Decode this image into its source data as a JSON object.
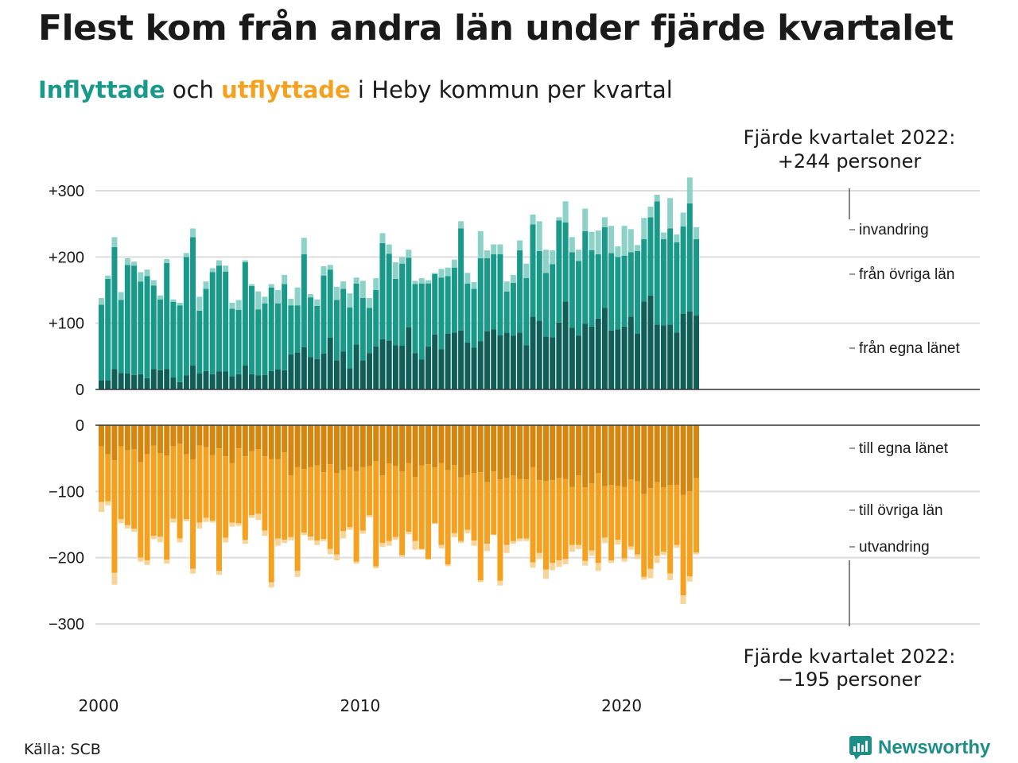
{
  "title": "Flest kom från andra län under fjärde kvartalet",
  "subtitle": {
    "part1": "Inflyttade",
    "part2": " och ",
    "part3": "utflyttade",
    "part4": " i Heby kommun per kvartal"
  },
  "annotation_top": {
    "line1": "Fjärde kvartalet 2022:",
    "line2": "+244 personer"
  },
  "annotation_bottom": {
    "line1": "Fjärde kvartalet 2022:",
    "line2": "−195 personer"
  },
  "source": "Källa: SCB",
  "brand": "Newsworthy",
  "colors": {
    "in_same": "#0f5e57",
    "in_other": "#18998a",
    "in_intl": "#8dd2c8",
    "out_same": "#d5860e",
    "out_other": "#f5a11f",
    "out_intl": "#f9d498",
    "grid": "#dddddd",
    "axis": "#333333"
  },
  "chart_data": {
    "type": "bar",
    "stacked": true,
    "x_start": "2000-Q1",
    "quarter_years": [
      "2000",
      "2010",
      "2020"
    ],
    "top": {
      "ylim": [
        0,
        300
      ],
      "yticks": [
        0,
        100,
        200,
        300
      ],
      "yticklabels": [
        "0",
        "+100",
        "+200",
        "+300"
      ],
      "series": [
        {
          "name": "från egna länet",
          "values": [
            14,
            14,
            31,
            25,
            24,
            22,
            23,
            17,
            31,
            29,
            31,
            18,
            11,
            21,
            36,
            24,
            28,
            23,
            27,
            27,
            20,
            23,
            36,
            23,
            21,
            22,
            28,
            30,
            29,
            53,
            56,
            64,
            49,
            46,
            54,
            78,
            44,
            57,
            32,
            68,
            44,
            55,
            65,
            76,
            74,
            67,
            66,
            94,
            55,
            45,
            65,
            83,
            61,
            84,
            86,
            89,
            71,
            63,
            73,
            88,
            91,
            82,
            86,
            81,
            86,
            67,
            110,
            104,
            80,
            79,
            101,
            133,
            93,
            81,
            99,
            95,
            107,
            123,
            89,
            91,
            95,
            110,
            84,
            133,
            142,
            98,
            97,
            98,
            86,
            114,
            118,
            112
          ]
        },
        {
          "name": "från övriga län",
          "values": [
            114,
            153,
            184,
            110,
            164,
            165,
            140,
            154,
            126,
            107,
            160,
            114,
            116,
            179,
            194,
            95,
            124,
            154,
            160,
            151,
            102,
            97,
            156,
            133,
            100,
            108,
            126,
            100,
            130,
            74,
            71,
            140,
            90,
            80,
            118,
            103,
            91,
            95,
            92,
            92,
            94,
            68,
            85,
            145,
            131,
            100,
            124,
            105,
            104,
            115,
            95,
            91,
            108,
            87,
            98,
            154,
            89,
            89,
            125,
            110,
            113,
            122,
            62,
            80,
            124,
            101,
            139,
            105,
            96,
            110,
            154,
            119,
            114,
            113,
            140,
            115,
            97,
            122,
            117,
            109,
            107,
            97,
            125,
            94,
            118,
            186,
            130,
            145,
            136,
            132,
            163,
            115
          ]
        },
        {
          "name": "invandring",
          "values": [
            10,
            5,
            15,
            12,
            10,
            6,
            14,
            10,
            8,
            6,
            6,
            4,
            4,
            6,
            13,
            21,
            11,
            6,
            8,
            9,
            9,
            15,
            3,
            3,
            27,
            10,
            5,
            20,
            14,
            10,
            27,
            25,
            5,
            10,
            14,
            7,
            20,
            11,
            21,
            9,
            26,
            15,
            18,
            15,
            14,
            25,
            10,
            12,
            5,
            8,
            5,
            2,
            13,
            13,
            12,
            11,
            16,
            10,
            41,
            12,
            15,
            15,
            15,
            12,
            15,
            22,
            15,
            45,
            35,
            21,
            5,
            32,
            23,
            17,
            34,
            28,
            36,
            15,
            41,
            16,
            45,
            35,
            9,
            32,
            16,
            10,
            10,
            46,
            12,
            21,
            39,
            18
          ]
        }
      ]
    },
    "bottom": {
      "ylim": [
        -300,
        0
      ],
      "yticks": [
        0,
        -100,
        -200,
        -300
      ],
      "yticklabels": [
        "0",
        "−100",
        "−200",
        "−300"
      ],
      "series": [
        {
          "name": "till egna länet",
          "values": [
            -32,
            -44,
            -53,
            -32,
            -38,
            -36,
            -56,
            -44,
            -31,
            -42,
            -46,
            -32,
            -28,
            -44,
            -52,
            -31,
            -33,
            -45,
            -35,
            -47,
            -57,
            -35,
            -47,
            -39,
            -36,
            -47,
            -51,
            -51,
            -41,
            -76,
            -63,
            -66,
            -63,
            -61,
            -71,
            -59,
            -72,
            -68,
            -63,
            -69,
            -63,
            -62,
            -54,
            -76,
            -58,
            -62,
            -70,
            -57,
            -78,
            -61,
            -59,
            -64,
            -57,
            -68,
            -60,
            -79,
            -75,
            -72,
            -71,
            -86,
            -70,
            -82,
            -80,
            -76,
            -81,
            -82,
            -63,
            -83,
            -84,
            -83,
            -80,
            -81,
            -93,
            -76,
            -94,
            -88,
            -72,
            -92,
            -90,
            -92,
            -93,
            -82,
            -85,
            -104,
            -95,
            -86,
            -94,
            -90,
            -90,
            -105,
            -100,
            -80
          ]
        },
        {
          "name": "till övriga län",
          "values": [
            -84,
            -71,
            -170,
            -110,
            -113,
            -120,
            -144,
            -160,
            -136,
            -126,
            -157,
            -109,
            -143,
            -98,
            -165,
            -116,
            -107,
            -99,
            -185,
            -123,
            -90,
            -113,
            -126,
            -97,
            -98,
            -112,
            -186,
            -120,
            -132,
            -93,
            -157,
            -96,
            -105,
            -113,
            -101,
            -128,
            -123,
            -92,
            -91,
            -137,
            -96,
            -74,
            -159,
            -102,
            -117,
            -107,
            -126,
            -104,
            -97,
            -126,
            -143,
            -84,
            -124,
            -142,
            -103,
            -96,
            -83,
            -102,
            -163,
            -93,
            -95,
            -153,
            -101,
            -99,
            -90,
            -89,
            -144,
            -110,
            -134,
            -125,
            -124,
            -121,
            -88,
            -105,
            -111,
            -101,
            -136,
            -78,
            -114,
            -81,
            -108,
            -101,
            -110,
            -125,
            -122,
            -111,
            -97,
            -134,
            -91,
            -152,
            -128,
            -112
          ]
        },
        {
          "name": "utvandring",
          "values": [
            -15,
            -6,
            -18,
            -6,
            -5,
            -5,
            -6,
            -7,
            -5,
            -9,
            -6,
            -6,
            -6,
            -3,
            -7,
            -9,
            -6,
            -3,
            -6,
            -7,
            -6,
            -4,
            -6,
            -4,
            -9,
            -8,
            -8,
            -11,
            -5,
            -5,
            -9,
            -4,
            -6,
            -7,
            -3,
            -8,
            -9,
            -11,
            -4,
            -3,
            -5,
            -3,
            -3,
            -6,
            -7,
            -4,
            -3,
            -4,
            -13,
            -1,
            -1,
            -1,
            -5,
            -3,
            -6,
            -3,
            -5,
            -8,
            -3,
            -11,
            -1,
            -7,
            -12,
            -4,
            -4,
            -4,
            -8,
            -9,
            -14,
            -11,
            -10,
            -8,
            -10,
            -6,
            -7,
            -8,
            -12,
            -8,
            -4,
            -7,
            -5,
            -5,
            -7,
            -4,
            -14,
            -11,
            -5,
            -10,
            -4,
            -13,
            -8,
            -3
          ]
        }
      ]
    },
    "right_labels": {
      "top": [
        "invandring",
        "från övriga län",
        "från egna länet"
      ],
      "bottom": [
        "till egna länet",
        "till övriga län",
        "utvandring"
      ]
    }
  }
}
